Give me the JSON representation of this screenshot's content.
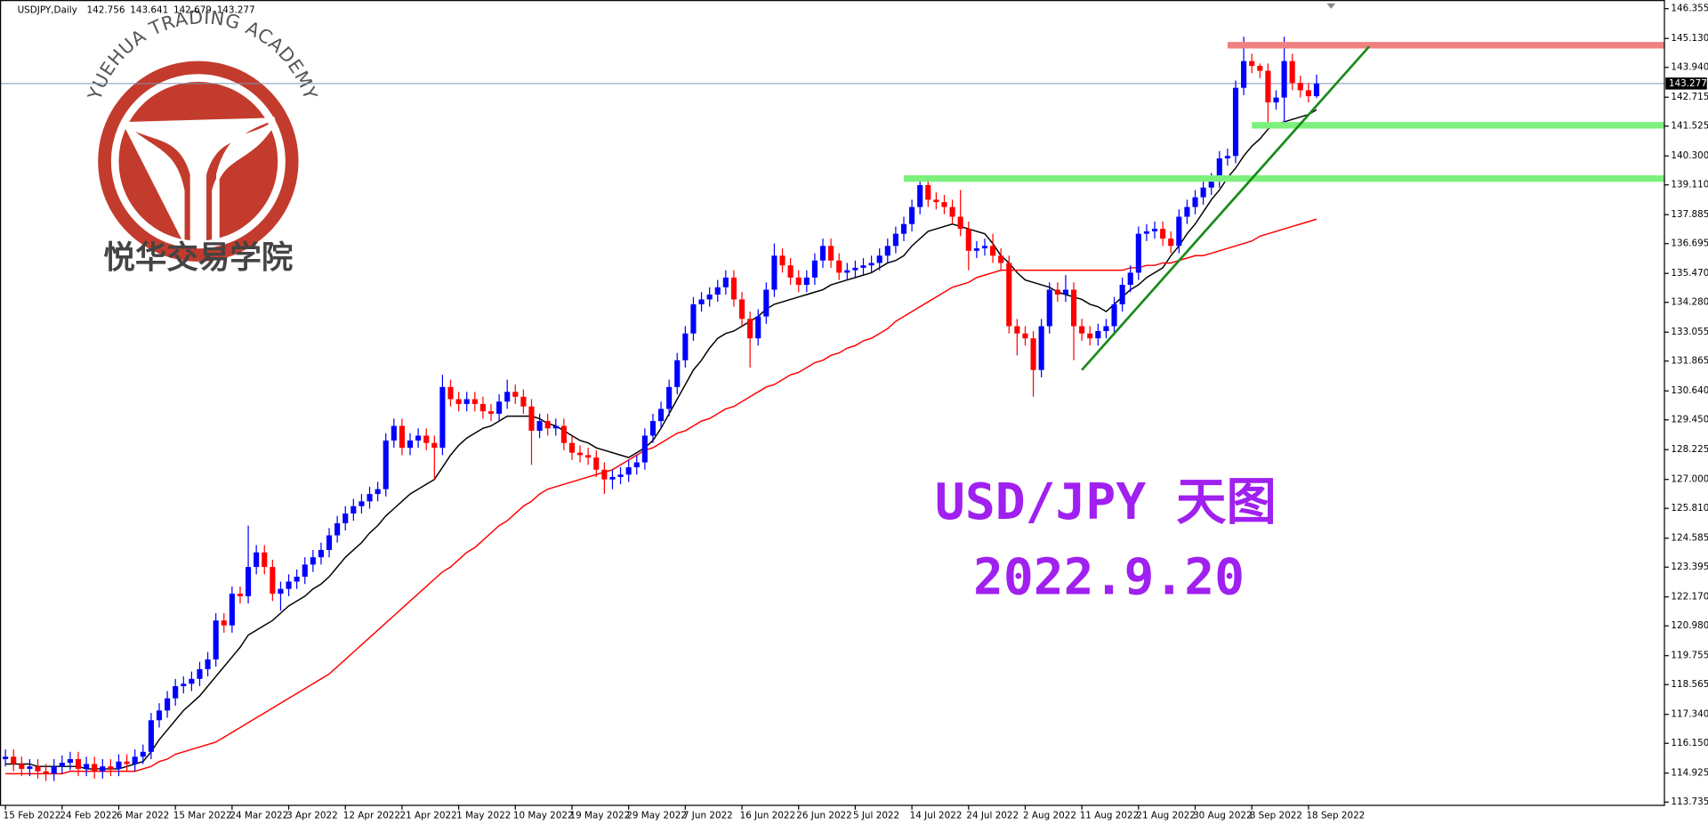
{
  "chart_data": {
    "type": "candlestick",
    "symbol": "USDJPY,Daily",
    "watermark": {
      "arc_text": "YUEHUA TRADING ACADEMY",
      "name": "悦华交易学院"
    },
    "annotations": [
      "USD/JPY 天图",
      "2022.9.20"
    ],
    "bull_color": "#0000ff",
    "bear_color": "#ff0000",
    "ylim": [
      113.6,
      146.62
    ],
    "yticks": [
      146.355,
      {
        "value": 145.13,
        "label": "145.130"
      },
      {
        "value": 143.94,
        "label": "143.940"
      },
      142.715,
      141.525,
      {
        "value": 140.3,
        "label": "140.300"
      },
      {
        "value": 139.11,
        "label": "139.110"
      },
      137.885,
      136.695,
      {
        "value": 135.47,
        "label": "135.470"
      },
      {
        "value": 134.28,
        "label": "134.280"
      },
      133.055,
      131.865,
      {
        "value": 130.64,
        "label": "130.640"
      },
      {
        "value": 129.45,
        "label": "129.450"
      },
      128.225,
      {
        "value": 127,
        "label": "127.000"
      },
      {
        "value": 125.81,
        "label": "125.810"
      },
      124.585,
      123.395,
      {
        "value": 122.17,
        "label": "122.170"
      },
      {
        "value": 120.98,
        "label": "120.980"
      },
      119.755,
      118.565,
      {
        "value": 117.34,
        "label": "117.340"
      },
      {
        "value": 116.15,
        "label": "116.150"
      },
      114.925,
      113.735
    ],
    "categories": [
      "15 Feb 2022",
      null,
      null,
      null,
      null,
      null,
      null,
      "24 Feb 2022",
      null,
      null,
      null,
      null,
      null,
      null,
      "6 Mar 2022",
      null,
      null,
      null,
      null,
      null,
      null,
      "15 Mar 2022",
      null,
      null,
      null,
      null,
      null,
      null,
      "24 Mar 2022",
      null,
      null,
      null,
      null,
      null,
      null,
      "3 Apr 2022",
      null,
      null,
      null,
      null,
      null,
      null,
      "12 Apr 2022",
      null,
      null,
      null,
      null,
      null,
      null,
      "21 Apr 2022",
      null,
      null,
      null,
      null,
      null,
      null,
      "1 May 2022",
      null,
      null,
      null,
      null,
      null,
      null,
      "10 May 2022",
      null,
      null,
      null,
      null,
      null,
      null,
      "19 May 2022",
      null,
      null,
      null,
      null,
      null,
      null,
      "29 May 2022",
      null,
      null,
      null,
      null,
      null,
      null,
      "7 Jun 2022",
      null,
      null,
      null,
      null,
      null,
      null,
      "16 Jun 2022",
      null,
      null,
      null,
      null,
      null,
      null,
      "26 Jun 2022",
      null,
      null,
      null,
      null,
      null,
      null,
      "5 Jul 2022",
      null,
      null,
      null,
      null,
      null,
      null,
      "14 Jul 2022",
      null,
      null,
      null,
      null,
      null,
      null,
      "24 Jul 2022",
      null,
      null,
      null,
      null,
      null,
      null,
      "2 Aug 2022",
      null,
      null,
      null,
      null,
      null,
      null,
      "11 Aug 2022",
      null,
      null,
      null,
      null,
      null,
      null,
      "21 Aug 2022",
      null,
      null,
      null,
      null,
      null,
      null,
      "30 Aug 2022",
      null,
      null,
      null,
      null,
      null,
      null,
      "8 Sep 2022",
      null,
      null,
      null,
      null,
      null,
      null,
      "18 Sep 2022",
      null
    ],
    "open": [
      115.5,
      115.6,
      115.3,
      115.1,
      115.2,
      115.0,
      114.9,
      115.2,
      115.35,
      115.5,
      115.1,
      115.3,
      115.0,
      115.2,
      115.1,
      115.4,
      115.3,
      115.6,
      115.8,
      117.1,
      117.5,
      118.0,
      118.5,
      118.6,
      118.8,
      119.2,
      119.6,
      121.2,
      121.0,
      122.3,
      122.2,
      123.4,
      124.0,
      123.4,
      122.3,
      122.5,
      122.8,
      123.0,
      123.5,
      123.8,
      124.1,
      124.7,
      125.2,
      125.6,
      125.9,
      126.1,
      126.4,
      126.6,
      128.6,
      129.2,
      128.3,
      128.6,
      128.8,
      128.5,
      128.3,
      130.8,
      130.3,
      130.1,
      130.3,
      130.1,
      129.8,
      129.7,
      130.2,
      130.6,
      130.4,
      130.0,
      129.0,
      129.4,
      129.1,
      129.2,
      128.5,
      128.1,
      128.0,
      127.9,
      127.4,
      127.0,
      127.1,
      127.2,
      127.5,
      127.7,
      128.8,
      129.4,
      129.9,
      130.8,
      131.9,
      133.0,
      134.2,
      134.4,
      134.6,
      134.9,
      135.3,
      134.4,
      133.6,
      132.8,
      133.7,
      134.8,
      136.2,
      135.8,
      135.3,
      135.0,
      135.3,
      136.0,
      136.6,
      136.0,
      135.5,
      135.6,
      135.7,
      135.8,
      135.9,
      136.2,
      136.6,
      137.1,
      137.5,
      138.2,
      139.1,
      138.5,
      138.4,
      138.2,
      137.8,
      137.3,
      136.4,
      136.5,
      136.6,
      136.2,
      135.9,
      133.3,
      133.0,
      132.8,
      131.5,
      133.3,
      134.8,
      134.6,
      134.8,
      133.3,
      133.0,
      132.8,
      133.1,
      133.3,
      134.2,
      135.0,
      135.5,
      137.1,
      137.2,
      137.3,
      136.9,
      136.6,
      137.8,
      138.2,
      138.6,
      139.0,
      139.3,
      140.2,
      140.3,
      143.1,
      144.2,
      144.0,
      143.8,
      142.5,
      142.7,
      144.2,
      143.3,
      143.0,
      142.756
    ],
    "high": [
      115.9,
      115.9,
      115.6,
      115.5,
      115.5,
      115.3,
      115.5,
      115.65,
      115.8,
      115.8,
      115.6,
      115.6,
      115.5,
      115.5,
      115.7,
      115.7,
      115.9,
      116.1,
      117.4,
      117.8,
      118.3,
      118.8,
      118.9,
      119.1,
      119.5,
      119.9,
      121.5,
      121.5,
      122.6,
      122.6,
      125.1,
      124.3,
      124.3,
      123.7,
      122.8,
      123.1,
      123.3,
      123.8,
      124.1,
      124.4,
      125.0,
      125.5,
      125.9,
      126.2,
      126.4,
      126.7,
      126.9,
      128.9,
      129.5,
      129.5,
      128.9,
      129.1,
      129.1,
      128.8,
      131.3,
      131.1,
      130.6,
      130.6,
      130.6,
      130.4,
      130.1,
      130.5,
      131.1,
      130.9,
      130.7,
      130.3,
      129.7,
      129.7,
      129.5,
      129.5,
      128.8,
      128.4,
      128.3,
      128.2,
      127.7,
      127.4,
      127.5,
      127.8,
      128.0,
      129.1,
      129.7,
      130.2,
      131.1,
      132.2,
      133.3,
      134.5,
      134.7,
      134.9,
      135.2,
      135.6,
      135.6,
      134.7,
      133.9,
      134.0,
      135.1,
      136.7,
      136.5,
      136.1,
      135.6,
      135.6,
      136.3,
      136.9,
      136.9,
      136.3,
      135.9,
      136.0,
      136.1,
      136.2,
      136.5,
      136.9,
      137.4,
      137.8,
      138.5,
      139.4,
      139.4,
      138.8,
      138.7,
      138.5,
      138.9,
      137.6,
      136.8,
      136.9,
      137.1,
      136.5,
      136.2,
      133.6,
      133.3,
      133.1,
      133.6,
      135.1,
      135.1,
      135.4,
      135.1,
      133.6,
      133.3,
      133.4,
      133.6,
      134.5,
      135.3,
      135.8,
      137.4,
      137.5,
      137.6,
      137.6,
      137.2,
      138.1,
      138.5,
      138.9,
      139.3,
      139.6,
      140.5,
      140.6,
      143.4,
      145.2,
      144.5,
      144.1,
      144.1,
      143.0,
      145.2,
      144.5,
      143.6,
      143.3,
      143.641
    ],
    "low": [
      115.2,
      115.0,
      114.8,
      114.8,
      114.7,
      114.6,
      114.6,
      114.9,
      115.05,
      114.8,
      114.8,
      114.7,
      114.7,
      114.8,
      114.8,
      115.0,
      115.0,
      115.3,
      115.5,
      116.8,
      117.2,
      117.7,
      118.2,
      118.3,
      118.5,
      118.9,
      119.3,
      120.7,
      120.7,
      121.9,
      121.9,
      123.1,
      123.1,
      122.0,
      121.6,
      122.2,
      122.5,
      122.7,
      123.2,
      123.5,
      123.8,
      124.4,
      124.9,
      125.3,
      125.6,
      125.8,
      126.1,
      126.3,
      128.3,
      128.0,
      128.0,
      128.3,
      128.2,
      127.0,
      128.0,
      130.0,
      129.8,
      129.8,
      129.8,
      129.5,
      129.4,
      129.4,
      129.9,
      130.1,
      129.7,
      127.6,
      128.7,
      128.8,
      128.8,
      128.2,
      127.8,
      127.7,
      127.6,
      127.1,
      126.4,
      126.6,
      126.8,
      126.9,
      127.2,
      127.4,
      128.5,
      129.1,
      129.6,
      130.5,
      131.6,
      132.7,
      133.9,
      134.1,
      134.3,
      134.6,
      134.1,
      133.3,
      131.6,
      132.5,
      133.4,
      134.5,
      135.5,
      135.0,
      134.7,
      134.7,
      135.0,
      135.7,
      135.7,
      135.2,
      135.2,
      135.3,
      135.4,
      135.5,
      135.6,
      135.9,
      136.3,
      136.8,
      137.2,
      137.9,
      138.2,
      138.1,
      137.9,
      137.5,
      137.0,
      135.6,
      136.1,
      136.2,
      135.9,
      135.6,
      133.0,
      132.1,
      132.5,
      130.4,
      131.2,
      133.0,
      134.3,
      134.3,
      131.9,
      132.7,
      132.5,
      132.5,
      132.8,
      133.0,
      133.9,
      134.7,
      135.2,
      136.8,
      136.9,
      136.6,
      136.3,
      136.3,
      137.5,
      137.9,
      138.3,
      138.7,
      139.0,
      139.9,
      140.0,
      142.8,
      143.7,
      143.5,
      141.4,
      142.2,
      141.5,
      143.0,
      142.7,
      142.5,
      142.679
    ],
    "close": [
      115.6,
      115.3,
      115.1,
      115.2,
      115.0,
      114.9,
      115.2,
      115.35,
      115.5,
      115.1,
      115.3,
      115.0,
      115.2,
      115.1,
      115.4,
      115.3,
      115.6,
      115.8,
      117.1,
      117.5,
      118.0,
      118.5,
      118.6,
      118.8,
      119.2,
      119.6,
      121.2,
      121.0,
      122.3,
      122.2,
      123.4,
      124.0,
      123.4,
      122.3,
      122.5,
      122.8,
      123.0,
      123.5,
      123.8,
      124.1,
      124.7,
      125.2,
      125.6,
      125.9,
      126.1,
      126.4,
      126.6,
      128.6,
      129.2,
      128.3,
      128.6,
      128.8,
      128.5,
      128.3,
      130.8,
      130.3,
      130.1,
      130.3,
      130.1,
      129.8,
      129.7,
      130.2,
      130.6,
      130.4,
      130.0,
      129.0,
      129.4,
      129.1,
      129.2,
      128.5,
      128.1,
      128.0,
      127.9,
      127.4,
      127.0,
      127.1,
      127.2,
      127.5,
      127.7,
      128.8,
      129.4,
      129.9,
      130.8,
      131.9,
      133.0,
      134.2,
      134.4,
      134.6,
      134.9,
      135.3,
      134.4,
      133.6,
      132.8,
      133.7,
      134.8,
      136.2,
      135.8,
      135.3,
      135.0,
      135.3,
      136.0,
      136.6,
      136.0,
      135.5,
      135.6,
      135.7,
      135.8,
      135.9,
      136.2,
      136.6,
      137.1,
      137.5,
      138.2,
      139.1,
      138.5,
      138.4,
      138.2,
      137.8,
      137.3,
      136.4,
      136.5,
      136.6,
      136.2,
      135.9,
      133.3,
      133.0,
      132.8,
      131.5,
      133.3,
      134.8,
      134.6,
      134.8,
      133.3,
      133.0,
      132.8,
      133.1,
      133.3,
      134.2,
      135.0,
      135.5,
      137.1,
      137.2,
      137.3,
      136.9,
      136.6,
      137.8,
      138.2,
      138.6,
      139.0,
      139.3,
      140.2,
      140.3,
      143.1,
      144.2,
      144.0,
      143.8,
      142.5,
      142.7,
      144.2,
      143.3,
      143.0,
      142.756,
      143.277
    ],
    "moving_averages": [
      {
        "color": "#000000",
        "values": [
          115.3,
          115.3,
          115.3,
          115.3,
          115.2,
          115.2,
          115.2,
          115.2,
          115.2,
          115.2,
          115.1,
          115.1,
          115.1,
          115.1,
          115.1,
          115.2,
          115.3,
          115.4,
          115.8,
          116.3,
          116.7,
          117.1,
          117.5,
          117.8,
          118.1,
          118.5,
          118.9,
          119.3,
          119.7,
          120.1,
          120.6,
          120.8,
          121.0,
          121.2,
          121.5,
          121.8,
          122.0,
          122.2,
          122.5,
          122.7,
          123.0,
          123.4,
          123.8,
          124.1,
          124.4,
          124.8,
          125.1,
          125.5,
          125.8,
          126.1,
          126.4,
          126.6,
          126.8,
          127.0,
          127.5,
          128.0,
          128.4,
          128.7,
          128.9,
          129.1,
          129.2,
          129.4,
          129.6,
          129.6,
          129.6,
          129.6,
          129.5,
          129.3,
          129.2,
          129.0,
          128.8,
          128.6,
          128.5,
          128.3,
          128.2,
          128.1,
          128.0,
          127.9,
          128.1,
          128.3,
          128.6,
          129.1,
          129.7,
          130.3,
          130.9,
          131.5,
          131.9,
          132.4,
          132.8,
          133.0,
          133.1,
          133.3,
          133.5,
          133.7,
          134.0,
          134.2,
          134.3,
          134.4,
          134.5,
          134.6,
          134.7,
          134.8,
          135.0,
          135.1,
          135.2,
          135.3,
          135.4,
          135.5,
          135.7,
          135.9,
          136.0,
          136.2,
          136.6,
          136.9,
          137.2,
          137.3,
          137.4,
          137.5,
          137.4,
          137.3,
          137.2,
          137.1,
          136.7,
          136.2,
          135.9,
          135.5,
          135.2,
          135.1,
          135.0,
          134.9,
          134.7,
          134.6,
          134.5,
          134.4,
          134.2,
          134.1,
          133.9,
          134.2,
          134.5,
          134.8,
          135.0,
          135.3,
          135.5,
          135.7,
          136.2,
          136.6,
          137.1,
          137.5,
          138.0,
          138.5,
          138.9,
          139.4,
          139.8,
          140.3,
          140.7,
          141.0,
          141.4,
          141.6,
          141.7,
          141.8,
          141.9,
          142.0,
          142.2
        ]
      },
      {
        "color": "#ff0000",
        "values": [
          114.9,
          114.9,
          114.9,
          114.9,
          114.9,
          114.9,
          114.9,
          114.9,
          115.0,
          115.0,
          115.0,
          115.0,
          115.0,
          115.0,
          115.0,
          115.0,
          115.0,
          115.1,
          115.2,
          115.4,
          115.5,
          115.7,
          115.8,
          115.9,
          116.0,
          116.1,
          116.2,
          116.4,
          116.6,
          116.8,
          117.0,
          117.2,
          117.4,
          117.6,
          117.8,
          118.0,
          118.2,
          118.4,
          118.6,
          118.8,
          119.0,
          119.3,
          119.6,
          119.9,
          120.2,
          120.5,
          120.8,
          121.1,
          121.4,
          121.7,
          122.0,
          122.3,
          122.6,
          122.9,
          123.2,
          123.4,
          123.7,
          124.0,
          124.2,
          124.5,
          124.8,
          125.1,
          125.3,
          125.6,
          125.9,
          126.1,
          126.4,
          126.6,
          126.7,
          126.8,
          126.9,
          127.0,
          127.1,
          127.2,
          127.3,
          127.4,
          127.6,
          127.8,
          128.0,
          128.2,
          128.3,
          128.5,
          128.7,
          128.9,
          129.0,
          129.2,
          129.4,
          129.5,
          129.7,
          129.9,
          130.0,
          130.2,
          130.4,
          130.6,
          130.8,
          130.9,
          131.1,
          131.3,
          131.4,
          131.6,
          131.8,
          131.9,
          132.1,
          132.2,
          132.4,
          132.5,
          132.7,
          132.8,
          133.0,
          133.2,
          133.5,
          133.7,
          133.9,
          134.1,
          134.3,
          134.5,
          134.7,
          134.9,
          135.0,
          135.1,
          135.3,
          135.4,
          135.5,
          135.6,
          135.6,
          135.6,
          135.6,
          135.6,
          135.6,
          135.6,
          135.6,
          135.6,
          135.6,
          135.6,
          135.6,
          135.6,
          135.6,
          135.6,
          135.6,
          135.7,
          135.7,
          135.8,
          135.8,
          135.9,
          135.9,
          136.0,
          136.1,
          136.2,
          136.2,
          136.3,
          136.4,
          136.5,
          136.6,
          136.7,
          136.8,
          137.0,
          137.1,
          137.2,
          137.3,
          137.4,
          137.5,
          137.6,
          137.7
        ]
      }
    ],
    "levels": [
      {
        "price": 144.85,
        "from": 151,
        "color": "#f08080"
      },
      {
        "price": 141.56,
        "from": 154,
        "color": "#7cf07c"
      },
      {
        "price": 139.37,
        "from": 111,
        "color": "#7cf07c"
      }
    ],
    "trendline": {
      "from": [
        133,
        131.5
      ],
      "to": [
        168.5,
        144.8
      ],
      "color": "#1a8a1a"
    },
    "current_line_color": "#7f93b4"
  }
}
